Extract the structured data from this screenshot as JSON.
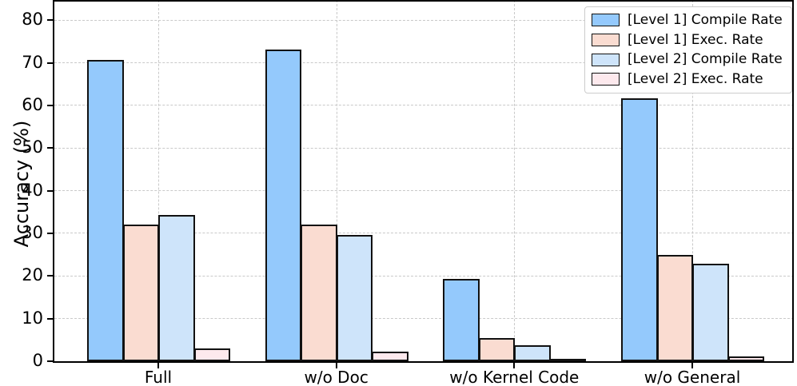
{
  "chart_data": {
    "type": "bar",
    "title": "",
    "xlabel": "",
    "ylabel": "Accuracy (%)",
    "categories": [
      "Full",
      "w/o Doc",
      "w/o Kernel Code",
      "w/o General"
    ],
    "series": [
      {
        "name": "[Level 1] Compile Rate",
        "color": "#94c9fc",
        "values": [
          70.7,
          73.1,
          19.4,
          61.7
        ]
      },
      {
        "name": "[Level 1] Exec. Rate",
        "color": "#fadcd1",
        "values": [
          32.1,
          32.0,
          5.4,
          24.9
        ]
      },
      {
        "name": "[Level 2] Compile Rate",
        "color": "#cee4fa",
        "values": [
          34.4,
          29.6,
          3.8,
          22.9
        ]
      },
      {
        "name": "[Level 2] Exec. Rate",
        "color": "#fde9ed",
        "values": [
          3.0,
          2.3,
          0.0,
          1.1
        ]
      }
    ],
    "y_ticks": [
      0,
      10,
      20,
      30,
      40,
      50,
      60,
      70,
      80
    ],
    "ylim": [
      0,
      84.8
    ],
    "grid": "dashed, horizontal at each y tick and vertical at each category center",
    "legend_position": "top-right",
    "bar_edge_color": "#111111",
    "grid_color": "#c9c9c9"
  }
}
